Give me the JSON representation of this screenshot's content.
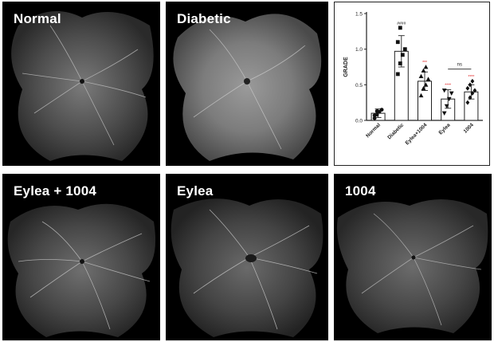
{
  "panels": [
    {
      "id": "normal",
      "label": "Normal"
    },
    {
      "id": "diabetic",
      "label": "Diabetic"
    },
    {
      "id": "eylea-1004",
      "label": "Eylea + 1004"
    },
    {
      "id": "eylea",
      "label": "Eylea"
    },
    {
      "id": "p1004",
      "label": "1004"
    }
  ],
  "chart_data": {
    "type": "bar",
    "ylabel": "GRADE",
    "ylim": [
      0,
      1.5
    ],
    "yticks": [
      "0.0",
      "0.5",
      "1.0",
      "1.5"
    ],
    "categories": [
      "Normal",
      "Diabetic",
      "Eylea+1004",
      "Eylea",
      "1004"
    ],
    "values": [
      0.1,
      0.97,
      0.55,
      0.3,
      0.4
    ],
    "errors": [
      0.06,
      0.22,
      0.13,
      0.13,
      0.1
    ],
    "markers": [
      "circle",
      "square",
      "triangle-up",
      "triangle-down",
      "diamond"
    ],
    "points": [
      [
        0.03,
        0.08,
        0.12,
        0.15,
        0.07,
        0.13
      ],
      [
        0.65,
        0.8,
        0.92,
        1.0,
        1.1,
        1.3
      ],
      [
        0.35,
        0.45,
        0.5,
        0.58,
        0.62,
        0.7,
        0.75
      ],
      [
        0.1,
        0.2,
        0.3,
        0.38,
        0.42
      ],
      [
        0.25,
        0.32,
        0.38,
        0.42,
        0.45,
        0.5,
        0.55
      ]
    ],
    "annotations": [
      {
        "category": "Diabetic",
        "text": "####",
        "color": "#333333"
      },
      {
        "category": "Eylea+1004",
        "text": "***",
        "color": "#e02020"
      },
      {
        "category": "Eylea",
        "text": "****",
        "color": "#e02020"
      },
      {
        "category": "1004",
        "text": "****",
        "color": "#e02020"
      }
    ],
    "comparison": {
      "from": "Eylea",
      "to": "1004",
      "text": "ns"
    }
  }
}
